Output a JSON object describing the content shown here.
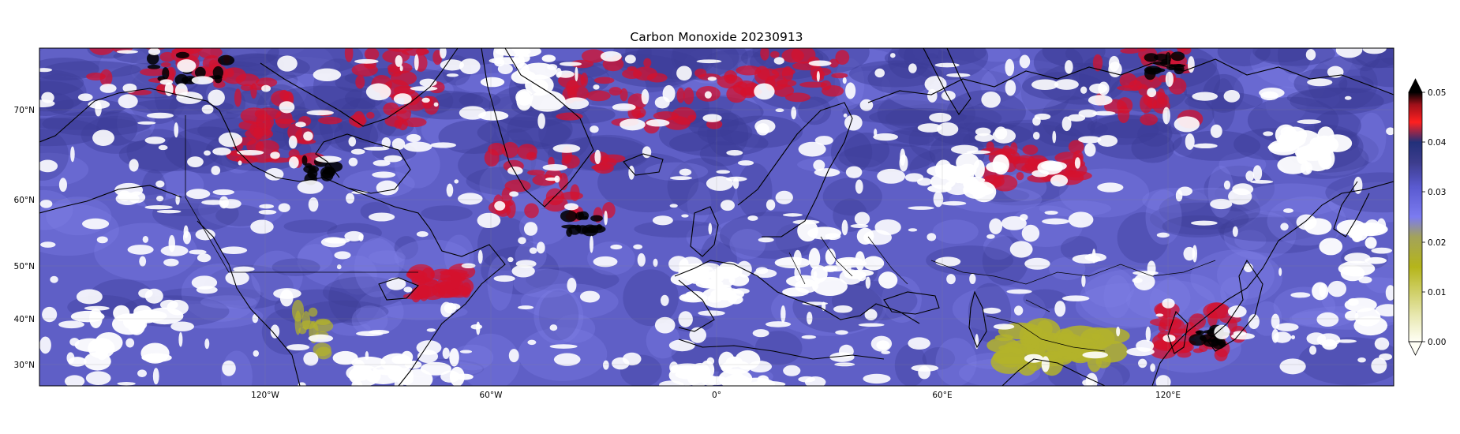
{
  "title": "Carbon Monoxide 20230913",
  "lon_ticks": [
    "120°W",
    "60°W",
    "0°",
    "60°E",
    "120°E"
  ],
  "lat_ticks": [
    "70°N",
    "60°N",
    "50°N",
    "40°N",
    "30°N"
  ],
  "colorbar": {
    "ticks": [
      "0.05",
      "0.04",
      "0.03",
      "0.02",
      "0.01",
      "0.00"
    ],
    "colors": [
      "#fffff5",
      "#e9e9b4",
      "#b5b51a",
      "#a3a35a",
      "#7b7bf0",
      "#5a5ad0",
      "#3c3c8c",
      "#22307a",
      "#ff2020",
      "#a0101a",
      "#000000"
    ]
  },
  "map_colors": {
    "base": "#5f5fc6",
    "light": "#7f7fe6",
    "dark": "#3b3b96",
    "red": "#d4112d",
    "black": "#000000",
    "yellow": "#b3b32a",
    "cloud": "#ffffff"
  },
  "chart_data": {
    "type": "heatmap",
    "title": "Carbon Monoxide 20230913",
    "xlabel": "",
    "ylabel": "",
    "extent_lon": [
      -180,
      180
    ],
    "extent_lat": [
      25,
      80
    ],
    "projection": "Mercator",
    "vmin": 0.0,
    "vmax": 0.05,
    "colorbar_extend": "both",
    "colorbar_location": "right",
    "grid": true
  }
}
